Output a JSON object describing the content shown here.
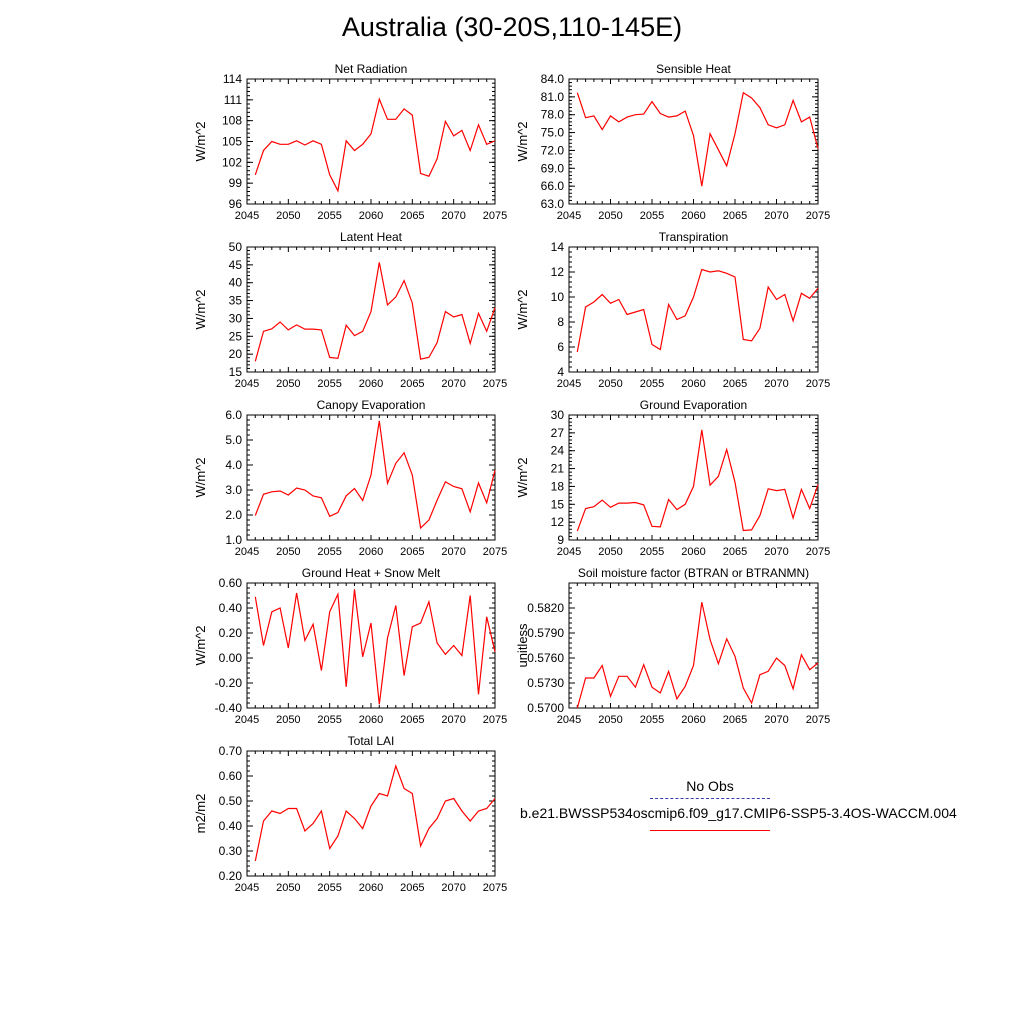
{
  "figure": {
    "title": "Australia (30-20S,110-145E)"
  },
  "legend": {
    "obs_label": "No Obs",
    "case_label": "b.e21.BWSSP534oscmip6.f09_g17.CMIP6-SSP5-3.4OS-WACCM.004",
    "case_color": "#ff0000",
    "obs_color": "#3a3aaa"
  },
  "line_color": "#ff0000",
  "chart_data": [
    {
      "type": "line",
      "title": "Net Radiation",
      "ylabel": "W/m^2",
      "xlim": [
        2045,
        2075
      ],
      "ylim": [
        96,
        114
      ],
      "xticks": [
        "2045",
        "2050",
        "2055",
        "2060",
        "2065",
        "2070",
        "2075"
      ],
      "yticks": [
        "96",
        "99",
        "102",
        "105",
        "108",
        "111",
        "114"
      ],
      "x": [
        2046,
        2047,
        2048,
        2049,
        2050,
        2051,
        2052,
        2053,
        2054,
        2055,
        2056,
        2057,
        2058,
        2059,
        2060,
        2061,
        2062,
        2063,
        2064,
        2065,
        2066,
        2067,
        2068,
        2069,
        2070,
        2071,
        2072,
        2073,
        2074,
        2075
      ],
      "series": [
        {
          "values": [
            100.2,
            103.7,
            105.0,
            104.6,
            104.6,
            105.1,
            104.5,
            105.1,
            104.6,
            100.2,
            97.9,
            105.1,
            103.7,
            104.6,
            106.1,
            111.1,
            108.2,
            108.2,
            109.7,
            108.8,
            100.4,
            100.0,
            102.5,
            107.9,
            105.8,
            106.6,
            103.7,
            107.4,
            104.6,
            105.1
          ]
        }
      ]
    },
    {
      "type": "line",
      "title": "Sensible Heat",
      "ylabel": "W/m^2",
      "xlim": [
        2045,
        2075
      ],
      "ylim": [
        63.0,
        84.0
      ],
      "xticks": [
        "2045",
        "2050",
        "2055",
        "2060",
        "2065",
        "2070",
        "2075"
      ],
      "yticks": [
        "63.0",
        "66.0",
        "69.0",
        "72.0",
        "75.0",
        "78.0",
        "81.0",
        "84.0"
      ],
      "x": [
        2046,
        2047,
        2048,
        2049,
        2050,
        2051,
        2052,
        2053,
        2054,
        2055,
        2056,
        2057,
        2058,
        2059,
        2060,
        2061,
        2062,
        2063,
        2064,
        2065,
        2066,
        2067,
        2068,
        2069,
        2070,
        2071,
        2072,
        2073,
        2074,
        2075
      ],
      "series": [
        {
          "values": [
            81.7,
            77.5,
            77.8,
            75.5,
            77.8,
            76.8,
            77.6,
            78.0,
            78.1,
            80.2,
            78.2,
            77.6,
            77.8,
            78.6,
            74.5,
            66.0,
            74.8,
            72.1,
            69.4,
            74.8,
            81.7,
            80.8,
            79.2,
            76.3,
            75.8,
            76.3,
            80.4,
            76.8,
            77.6,
            72.3
          ]
        }
      ]
    },
    {
      "type": "line",
      "title": "Latent Heat",
      "ylabel": "W/m^2",
      "xlim": [
        2045,
        2075
      ],
      "ylim": [
        15,
        50
      ],
      "xticks": [
        "2045",
        "2050",
        "2055",
        "2060",
        "2065",
        "2070",
        "2075"
      ],
      "yticks": [
        "15",
        "20",
        "25",
        "30",
        "35",
        "40",
        "45",
        "50"
      ],
      "x": [
        2046,
        2047,
        2048,
        2049,
        2050,
        2051,
        2052,
        2053,
        2054,
        2055,
        2056,
        2057,
        2058,
        2059,
        2060,
        2061,
        2062,
        2063,
        2064,
        2065,
        2066,
        2067,
        2068,
        2069,
        2070,
        2071,
        2072,
        2073,
        2074,
        2075
      ],
      "series": [
        {
          "values": [
            18.0,
            26.4,
            27.1,
            29.0,
            26.8,
            28.2,
            27.0,
            27.0,
            26.8,
            19.1,
            18.8,
            28.1,
            25.2,
            26.4,
            31.9,
            45.7,
            33.8,
            36.0,
            40.6,
            34.3,
            18.6,
            19.1,
            23.2,
            31.9,
            30.4,
            31.1,
            23.0,
            31.4,
            26.4,
            33.0
          ]
        }
      ]
    },
    {
      "type": "line",
      "title": "Transpiration",
      "ylabel": "W/m^2",
      "xlim": [
        2045,
        2075
      ],
      "ylim": [
        4,
        14
      ],
      "xticks": [
        "2045",
        "2050",
        "2055",
        "2060",
        "2065",
        "2070",
        "2075"
      ],
      "yticks": [
        "4",
        "6",
        "8",
        "10",
        "12",
        "14"
      ],
      "x": [
        2046,
        2047,
        2048,
        2049,
        2050,
        2051,
        2052,
        2053,
        2054,
        2055,
        2056,
        2057,
        2058,
        2059,
        2060,
        2061,
        2062,
        2063,
        2064,
        2065,
        2066,
        2067,
        2068,
        2069,
        2070,
        2071,
        2072,
        2073,
        2074,
        2075
      ],
      "series": [
        {
          "values": [
            5.6,
            9.2,
            9.6,
            10.2,
            9.5,
            9.8,
            8.6,
            8.8,
            9.0,
            6.2,
            5.8,
            9.4,
            8.2,
            8.5,
            10.0,
            12.2,
            12.0,
            12.1,
            11.9,
            11.6,
            6.6,
            6.5,
            7.5,
            10.8,
            9.8,
            10.2,
            8.1,
            10.3,
            9.9,
            10.7
          ]
        }
      ]
    },
    {
      "type": "line",
      "title": "Canopy Evaporation",
      "ylabel": "W/m^2",
      "xlim": [
        2045,
        2075
      ],
      "ylim": [
        1.0,
        6.0
      ],
      "xticks": [
        "2045",
        "2050",
        "2055",
        "2060",
        "2065",
        "2070",
        "2075"
      ],
      "yticks": [
        "1.0",
        "2.0",
        "3.0",
        "4.0",
        "5.0",
        "6.0"
      ],
      "x": [
        2046,
        2047,
        2048,
        2049,
        2050,
        2051,
        2052,
        2053,
        2054,
        2055,
        2056,
        2057,
        2058,
        2059,
        2060,
        2061,
        2062,
        2063,
        2064,
        2065,
        2066,
        2067,
        2068,
        2069,
        2070,
        2071,
        2072,
        2073,
        2074,
        2075
      ],
      "series": [
        {
          "values": [
            1.98,
            2.83,
            2.93,
            2.96,
            2.8,
            3.08,
            3.0,
            2.76,
            2.69,
            1.95,
            2.1,
            2.77,
            3.06,
            2.58,
            3.6,
            5.77,
            3.27,
            4.07,
            4.49,
            3.6,
            1.48,
            1.8,
            2.59,
            3.33,
            3.14,
            3.05,
            2.13,
            3.28,
            2.49,
            3.79
          ]
        }
      ]
    },
    {
      "type": "line",
      "title": "Ground Evaporation",
      "ylabel": "W/m^2",
      "xlim": [
        2045,
        2075
      ],
      "ylim": [
        9,
        30
      ],
      "xticks": [
        "2045",
        "2050",
        "2055",
        "2060",
        "2065",
        "2070",
        "2075"
      ],
      "yticks": [
        "9",
        "12",
        "15",
        "18",
        "21",
        "24",
        "27",
        "30"
      ],
      "x": [
        2046,
        2047,
        2048,
        2049,
        2050,
        2051,
        2052,
        2053,
        2054,
        2055,
        2056,
        2057,
        2058,
        2059,
        2060,
        2061,
        2062,
        2063,
        2064,
        2065,
        2066,
        2067,
        2068,
        2069,
        2070,
        2071,
        2072,
        2073,
        2074,
        2075
      ],
      "series": [
        {
          "values": [
            10.5,
            14.3,
            14.6,
            15.7,
            14.5,
            15.2,
            15.2,
            15.3,
            14.9,
            11.3,
            11.2,
            15.8,
            14.1,
            15.0,
            18.0,
            27.5,
            18.2,
            19.7,
            24.2,
            18.7,
            10.6,
            10.7,
            13.1,
            17.6,
            17.3,
            17.5,
            12.7,
            17.5,
            14.3,
            18.3
          ]
        }
      ]
    },
    {
      "type": "line",
      "title": "Ground Heat + Snow Melt",
      "ylabel": "W/m^2",
      "xlim": [
        2045,
        2075
      ],
      "ylim": [
        -0.4,
        0.6
      ],
      "xticks": [
        "2045",
        "2050",
        "2055",
        "2060",
        "2065",
        "2070",
        "2075"
      ],
      "yticks": [
        "-0.40",
        "-0.20",
        "0.00",
        "0.20",
        "0.40",
        "0.60"
      ],
      "x": [
        2046,
        2047,
        2048,
        2049,
        2050,
        2051,
        2052,
        2053,
        2054,
        2055,
        2056,
        2057,
        2058,
        2059,
        2060,
        2061,
        2062,
        2063,
        2064,
        2065,
        2066,
        2067,
        2068,
        2069,
        2070,
        2071,
        2072,
        2073,
        2074,
        2075
      ],
      "series": [
        {
          "values": [
            0.49,
            0.1,
            0.37,
            0.4,
            0.08,
            0.52,
            0.14,
            0.27,
            -0.1,
            0.37,
            0.51,
            -0.23,
            0.55,
            0.01,
            0.28,
            -0.37,
            0.16,
            0.42,
            -0.14,
            0.25,
            0.28,
            0.45,
            0.12,
            0.03,
            0.1,
            0.02,
            0.5,
            -0.29,
            0.33,
            0.05
          ]
        }
      ]
    },
    {
      "type": "line",
      "title": "Soil moisture factor (BTRAN or BTRANMN)",
      "ylabel": "unitless",
      "xlim": [
        2045,
        2075
      ],
      "ylim": [
        0.57,
        0.585
      ],
      "xticks": [
        "2045",
        "2050",
        "2055",
        "2060",
        "2065",
        "2070",
        "2075"
      ],
      "yticks": [
        "0.5700",
        "0.5730",
        "0.5760",
        "0.5790",
        "0.5820"
      ],
      "x": [
        2046,
        2047,
        2048,
        2049,
        2050,
        2051,
        2052,
        2053,
        2054,
        2055,
        2056,
        2057,
        2058,
        2059,
        2060,
        2061,
        2062,
        2063,
        2064,
        2065,
        2066,
        2067,
        2068,
        2069,
        2070,
        2071,
        2072,
        2073,
        2074,
        2075
      ],
      "series": [
        {
          "values": [
            0.57,
            0.5736,
            0.5736,
            0.5751,
            0.5714,
            0.5738,
            0.5738,
            0.5725,
            0.5752,
            0.5725,
            0.5718,
            0.5744,
            0.5711,
            0.5726,
            0.5751,
            0.5827,
            0.5782,
            0.5753,
            0.5783,
            0.5762,
            0.5724,
            0.5706,
            0.574,
            0.5744,
            0.576,
            0.5751,
            0.5723,
            0.5764,
            0.5746,
            0.5754
          ]
        }
      ]
    },
    {
      "type": "line",
      "title": "Total LAI",
      "ylabel": "m2/m2",
      "xlim": [
        2045,
        2075
      ],
      "ylim": [
        0.2,
        0.7
      ],
      "xticks": [
        "2045",
        "2050",
        "2055",
        "2060",
        "2065",
        "2070",
        "2075"
      ],
      "yticks": [
        "0.20",
        "0.30",
        "0.40",
        "0.50",
        "0.60",
        "0.70"
      ],
      "x": [
        2046,
        2047,
        2048,
        2049,
        2050,
        2051,
        2052,
        2053,
        2054,
        2055,
        2056,
        2057,
        2058,
        2059,
        2060,
        2061,
        2062,
        2063,
        2064,
        2065,
        2066,
        2067,
        2068,
        2069,
        2070,
        2071,
        2072,
        2073,
        2074,
        2075
      ],
      "series": [
        {
          "values": [
            0.26,
            0.42,
            0.46,
            0.45,
            0.47,
            0.47,
            0.38,
            0.41,
            0.46,
            0.31,
            0.36,
            0.46,
            0.43,
            0.39,
            0.48,
            0.53,
            0.52,
            0.64,
            0.55,
            0.53,
            0.32,
            0.39,
            0.43,
            0.5,
            0.51,
            0.46,
            0.42,
            0.46,
            0.47,
            0.51
          ]
        }
      ]
    }
  ]
}
